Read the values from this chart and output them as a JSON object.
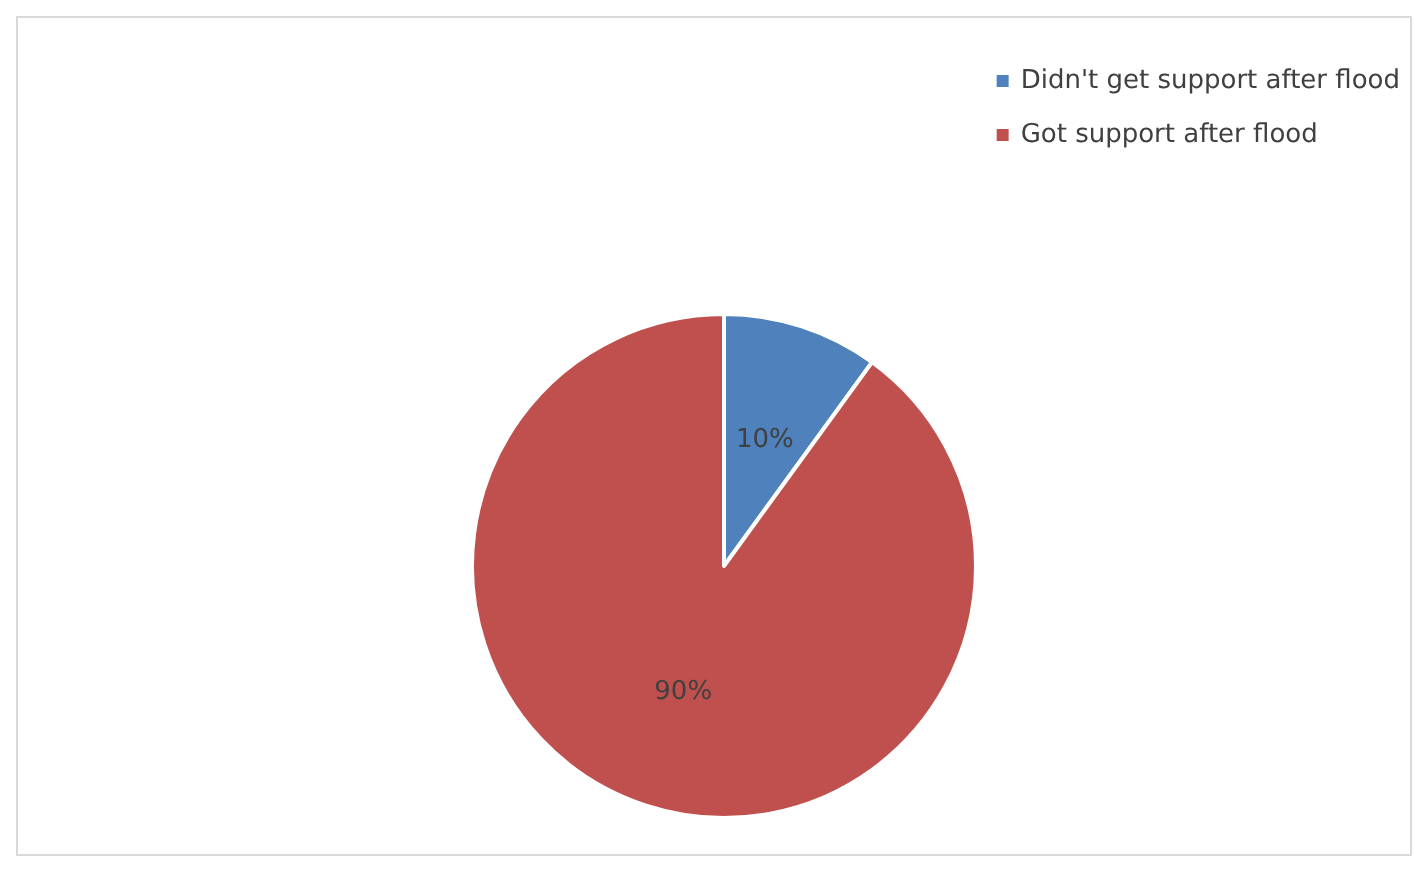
{
  "chart_data": {
    "type": "pie",
    "categories": [
      "Didn't get support after flood",
      "Got support after flood"
    ],
    "values": [
      10,
      90
    ],
    "colors": [
      "#4f81bd",
      "#c0504d"
    ],
    "value_labels": [
      "10%",
      "90%"
    ],
    "legend": "top right"
  }
}
